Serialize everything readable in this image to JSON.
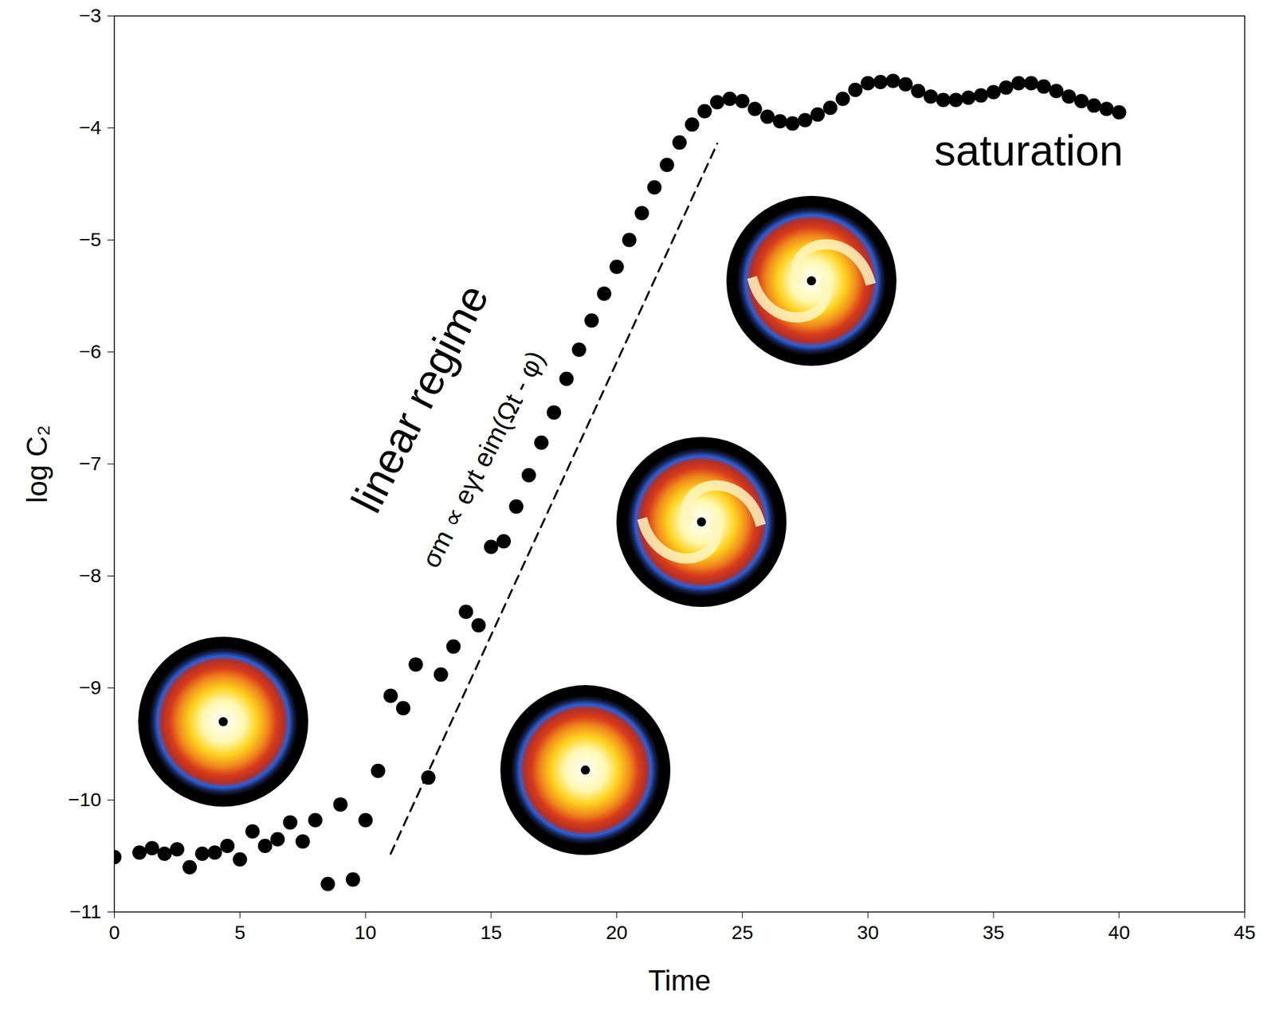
{
  "chart_data": {
    "type": "scatter",
    "x_label": "Time",
    "y_label": "log C₂",
    "xlim": [
      0,
      45
    ],
    "xticks": [
      0,
      5,
      10,
      15,
      20,
      25,
      30,
      35,
      40,
      45
    ],
    "ylim": [
      -11,
      -3
    ],
    "yticks": [
      -11,
      -10,
      -9,
      -8,
      -7,
      -6,
      -5,
      -4,
      -3
    ],
    "grid": false,
    "series": [
      {
        "type": "scatter",
        "marker": "circle",
        "color": "#000000",
        "x": [
          0,
          1,
          1.5,
          2,
          2.5,
          3,
          3.5,
          4,
          4.5,
          5,
          5.5,
          6,
          6.5,
          7,
          7.5,
          8,
          8.5,
          9,
          9.5,
          10,
          10.5,
          11,
          11.5,
          12,
          12.5,
          13,
          13.5,
          14,
          14.5,
          15,
          15.5,
          16,
          16.5,
          17,
          17.5,
          18,
          18.5,
          19,
          19.5,
          20,
          20.5,
          21,
          21.5,
          22,
          22.5,
          23,
          23.5,
          24,
          24.5,
          25,
          25.5,
          26,
          26.5,
          27,
          27.5,
          28,
          28.5,
          29,
          29.5,
          30,
          30.5,
          31,
          31.5,
          32,
          32.5,
          33,
          33.5,
          34,
          34.5,
          35,
          35.5,
          36,
          36.5,
          37,
          37.5,
          38,
          38.5,
          39,
          39.5,
          40
        ],
        "values": [
          -10.51,
          -10.47,
          -10.43,
          -10.48,
          -10.44,
          -10.6,
          -10.48,
          -10.47,
          -10.41,
          -10.53,
          -10.28,
          -10.41,
          -10.35,
          -10.2,
          -10.37,
          -10.18,
          -10.75,
          -10.04,
          -10.71,
          -10.18,
          -9.74,
          -9.07,
          -9.18,
          -8.79,
          -9.8,
          -8.88,
          -8.63,
          -8.32,
          -8.44,
          -7.74,
          -7.69,
          -7.38,
          -7.1,
          -6.81,
          -6.54,
          -6.24,
          -5.98,
          -5.72,
          -5.48,
          -5.24,
          -5.0,
          -4.76,
          -4.53,
          -4.33,
          -4.13,
          -3.97,
          -3.85,
          -3.77,
          -3.74,
          -3.76,
          -3.83,
          -3.9,
          -3.94,
          -3.96,
          -3.93,
          -3.88,
          -3.82,
          -3.74,
          -3.66,
          -3.6,
          -3.59,
          -3.58,
          -3.61,
          -3.67,
          -3.72,
          -3.75,
          -3.75,
          -3.73,
          -3.71,
          -3.68,
          -3.64,
          -3.6,
          -3.6,
          -3.63,
          -3.67,
          -3.72,
          -3.76,
          -3.8,
          -3.83,
          -3.86
        ]
      },
      {
        "type": "line",
        "line_style": "dashed",
        "color": "#000000",
        "x": [
          11,
          24
        ],
        "values": [
          -10.48,
          -4.14
        ]
      }
    ],
    "annotations": [
      {
        "text": "linear regime",
        "x": 12.2,
        "y": -6.42
      },
      {
        "text": "σm ∝ eγt eim(Ωt - φ)",
        "x": 14.7,
        "y": -6.96
      },
      {
        "text": "saturation",
        "x": 36.4,
        "y": -4.21
      }
    ]
  }
}
